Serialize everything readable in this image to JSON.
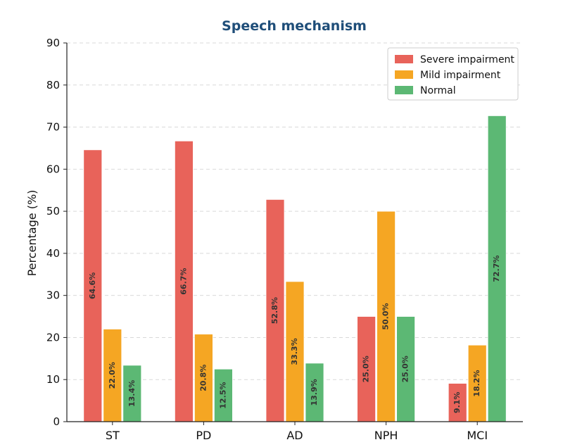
{
  "chart_data": {
    "type": "bar",
    "title": "Speech mechanism",
    "title_color": "#1f4e79",
    "xlabel": "",
    "ylabel": "Percentage (%)",
    "ylim": [
      0,
      90
    ],
    "yticks": [
      0,
      10,
      20,
      30,
      40,
      50,
      60,
      70,
      80,
      90
    ],
    "grid": "horizontal dashed",
    "legend_position": "top-right",
    "categories": [
      "ST",
      "PD",
      "AD",
      "NPH",
      "MCI"
    ],
    "series": [
      {
        "name": "Severe impairment",
        "color": "#e8635a",
        "values": [
          64.6,
          66.7,
          52.8,
          25.0,
          9.1
        ],
        "labels": [
          "64.6%",
          "66.7%",
          "52.8%",
          "25.0%",
          "9.1%"
        ]
      },
      {
        "name": "Mild impairment",
        "color": "#f5a623",
        "values": [
          22.0,
          20.8,
          33.3,
          50.0,
          18.2
        ],
        "labels": [
          "22.0%",
          "20.8%",
          "33.3%",
          "50.0%",
          "18.2%"
        ]
      },
      {
        "name": "Normal",
        "color": "#5cb874",
        "values": [
          13.4,
          12.5,
          13.9,
          25.0,
          72.7
        ],
        "labels": [
          "13.4%",
          "12.5%",
          "13.9%",
          "25.0%",
          "72.7%"
        ]
      }
    ]
  }
}
